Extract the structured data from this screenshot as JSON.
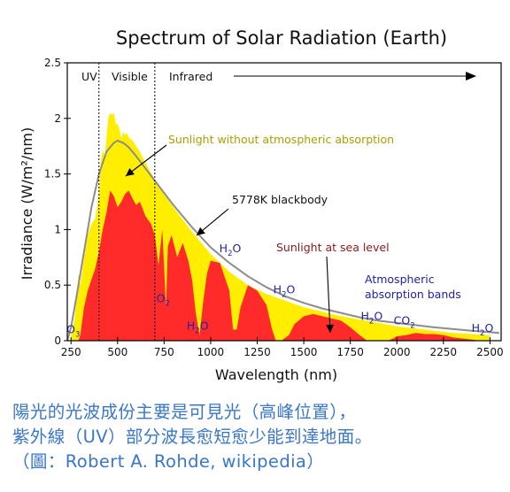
{
  "chart_data": {
    "type": "area",
    "title": "Spectrum of Solar Radiation (Earth)",
    "xlabel": "Wavelength (nm)",
    "ylabel": "Irradiance (W/m²/nm)",
    "xlim": [
      230,
      2560
    ],
    "ylim": [
      0,
      2.5
    ],
    "xticks": [
      "250",
      "500",
      "750",
      "1000",
      "1250",
      "1500",
      "1750",
      "2000",
      "2250",
      "2500"
    ],
    "yticks": [
      "0",
      "0.5",
      "1",
      "1.5",
      "2",
      "2.5"
    ],
    "regions": [
      "UV",
      "Visible",
      "Infrared"
    ],
    "region_boundaries_nm": [
      400,
      700
    ],
    "series": [
      {
        "name": "Sunlight without atmospheric absorption",
        "color": "#ffee00",
        "x": [
          250,
          270,
          290,
          300,
          320,
          340,
          360,
          380,
          400,
          410,
          420,
          430,
          440,
          450,
          460,
          470,
          480,
          490,
          500,
          510,
          520,
          530,
          540,
          550,
          560,
          580,
          600,
          620,
          650,
          700,
          750,
          800,
          900,
          1000,
          1100,
          1200,
          1300,
          1400,
          1500,
          1600,
          1700,
          1800,
          1900,
          2000,
          2100,
          2200,
          2300,
          2400,
          2500
        ],
        "y": [
          0.05,
          0.2,
          0.6,
          0.5,
          0.75,
          0.95,
          1.05,
          1.1,
          1.3,
          1.62,
          1.72,
          1.65,
          1.82,
          2.0,
          2.05,
          2.03,
          2.05,
          1.95,
          1.95,
          1.9,
          1.82,
          1.88,
          1.85,
          1.87,
          1.83,
          1.8,
          1.75,
          1.7,
          1.6,
          1.45,
          1.32,
          1.2,
          0.98,
          0.78,
          0.62,
          0.5,
          0.42,
          0.36,
          0.3,
          0.26,
          0.22,
          0.19,
          0.16,
          0.13,
          0.11,
          0.09,
          0.07,
          0.06,
          0.05
        ]
      },
      {
        "name": "Sunlight at sea level",
        "color": "#ff2a2a",
        "x": [
          290,
          300,
          320,
          340,
          360,
          380,
          400,
          420,
          440,
          460,
          480,
          500,
          520,
          540,
          560,
          580,
          600,
          620,
          650,
          680,
          700,
          720,
          740,
          760,
          770,
          790,
          820,
          850,
          880,
          900,
          920,
          940,
          960,
          980,
          1000,
          1050,
          1100,
          1120,
          1140,
          1160,
          1200,
          1250,
          1300,
          1330,
          1350,
          1380,
          1420,
          1450,
          1500,
          1550,
          1600,
          1650,
          1700,
          1750,
          1800,
          1840,
          1880,
          1920,
          1950,
          1980,
          2000,
          2050,
          2100,
          2150,
          2200,
          2250,
          2300,
          2350,
          2400,
          2450,
          2500
        ],
        "y": [
          0.0,
          0.05,
          0.3,
          0.45,
          0.55,
          0.65,
          0.8,
          1.0,
          1.15,
          1.35,
          1.3,
          1.2,
          1.25,
          1.32,
          1.35,
          1.28,
          1.22,
          1.25,
          1.12,
          1.05,
          0.95,
          0.68,
          1.0,
          0.3,
          0.85,
          0.95,
          0.75,
          0.88,
          0.72,
          0.55,
          0.25,
          0.05,
          0.35,
          0.6,
          0.72,
          0.7,
          0.45,
          0.1,
          0.1,
          0.3,
          0.5,
          0.45,
          0.32,
          0.1,
          0.0,
          0.0,
          0.05,
          0.15,
          0.22,
          0.24,
          0.22,
          0.2,
          0.18,
          0.12,
          0.05,
          0.0,
          0.0,
          0.0,
          0.0,
          0.02,
          0.04,
          0.05,
          0.07,
          0.06,
          0.06,
          0.05,
          0.03,
          0.02,
          0.01,
          0.0,
          0.0
        ]
      },
      {
        "name": "5778K blackbody",
        "color": "#8c8c8c",
        "x": [
          230,
          250,
          280,
          300,
          330,
          360,
          400,
          440,
          480,
          500,
          530,
          560,
          600,
          650,
          700,
          800,
          900,
          1000,
          1100,
          1200,
          1300,
          1400,
          1500,
          1600,
          1700,
          1800,
          1900,
          2000,
          2200,
          2400,
          2550
        ],
        "y": [
          0.0,
          0.12,
          0.4,
          0.6,
          0.9,
          1.2,
          1.5,
          1.7,
          1.78,
          1.8,
          1.78,
          1.74,
          1.66,
          1.55,
          1.44,
          1.22,
          1.02,
          0.84,
          0.7,
          0.58,
          0.48,
          0.4,
          0.34,
          0.29,
          0.25,
          0.21,
          0.18,
          0.16,
          0.12,
          0.09,
          0.07
        ]
      }
    ],
    "annotations": {
      "without_absorption": "Sunlight without atmospheric absorption",
      "blackbody": "5778K blackbody",
      "sea_level": "Sunlight at sea level",
      "bands_line1": "Atmospheric",
      "bands_line2": "absorption bands",
      "molecules": [
        {
          "label": "O",
          "sub": "3",
          "x": 262,
          "y": 0.02
        },
        {
          "label": "O",
          "sub": "2",
          "x": 745,
          "y": 0.3
        },
        {
          "label": "H",
          "sub": "2",
          "tail": "O",
          "x": 930,
          "y": 0.05
        },
        {
          "label": "H",
          "sub": "2",
          "tail": "O",
          "x": 1105,
          "y": 0.75
        },
        {
          "label": "H",
          "sub": "2",
          "tail": "O",
          "x": 1395,
          "y": 0.38
        },
        {
          "label": "H",
          "sub": "2",
          "tail": "O",
          "x": 1865,
          "y": 0.14
        },
        {
          "label": "CO",
          "sub": "2",
          "x": 2040,
          "y": 0.1
        },
        {
          "label": "H",
          "sub": "2",
          "tail": "O",
          "x": 2460,
          "y": 0.03
        }
      ]
    }
  },
  "caption": {
    "line1": "陽光的光波成份主要是可見光（高峰位置），",
    "line2": "紫外線（UV）部分波長愈短愈少能到達地面。",
    "line3": "（圖：Robert A. Rohde, wikipedia）"
  }
}
